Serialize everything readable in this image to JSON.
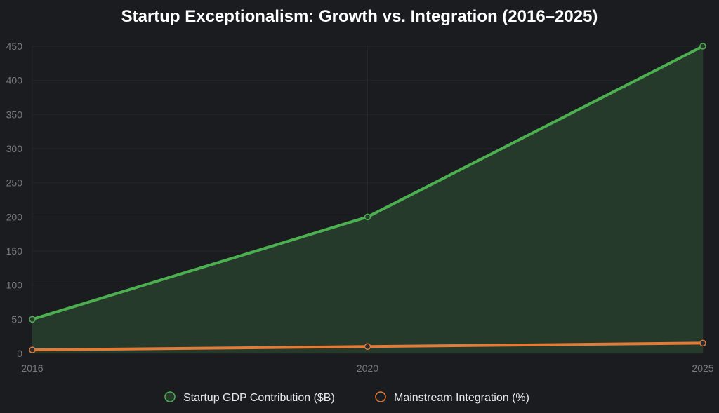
{
  "chart_data": {
    "type": "area",
    "title": "Startup Exceptionalism: Growth vs. Integration (2016–2025)",
    "categories": [
      "2016",
      "2020",
      "2025"
    ],
    "series": [
      {
        "name": "Startup GDP Contribution ($B)",
        "values": [
          50,
          200,
          450
        ],
        "color": "#4caf50",
        "fill": "#253a2b",
        "filled": true
      },
      {
        "name": "Mainstream Integration (%)",
        "values": [
          5,
          10,
          15
        ],
        "color": "#e07b39",
        "filled": false
      }
    ],
    "ylim": [
      0,
      450
    ],
    "yticks": [
      0,
      50,
      100,
      150,
      200,
      250,
      300,
      350,
      400,
      450
    ],
    "xlabel": "",
    "ylabel": "",
    "grid": true,
    "legend_position": "bottom"
  }
}
